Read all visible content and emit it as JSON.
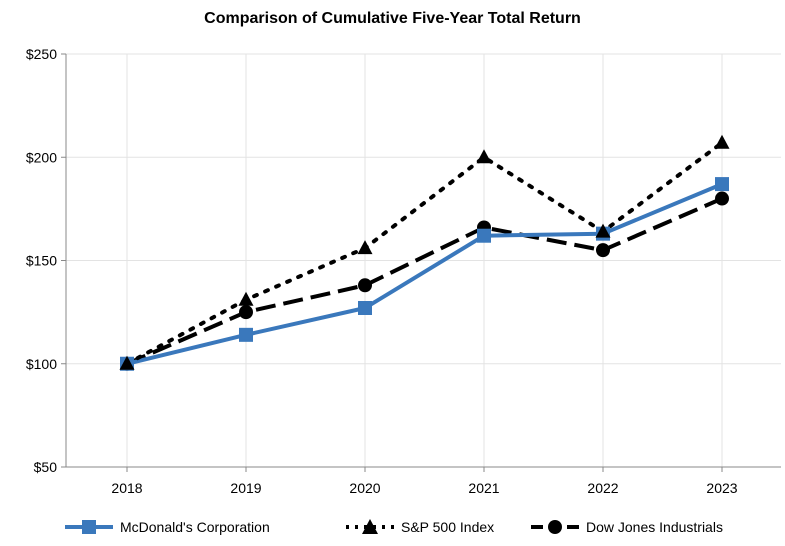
{
  "chart_data": {
    "type": "line",
    "title": "Comparison of Cumulative Five-Year Total Return",
    "xlabel": "",
    "ylabel": "",
    "categories": [
      "2018",
      "2019",
      "2020",
      "2021",
      "2022",
      "2023"
    ],
    "y_ticks": [
      "$50",
      "$100",
      "$150",
      "$200",
      "$250"
    ],
    "ylim": [
      50,
      250
    ],
    "grid": true,
    "legend_position": "bottom",
    "series": [
      {
        "name": "McDonald's Corporation",
        "values": [
          100,
          114,
          127,
          162,
          163,
          187
        ],
        "color": "#3a78bc",
        "line_style": "solid",
        "marker": "square"
      },
      {
        "name": "S&P 500 Index",
        "values": [
          100,
          131,
          156,
          200,
          164,
          207
        ],
        "color": "#000000",
        "line_style": "dotted",
        "marker": "triangle"
      },
      {
        "name": "Dow Jones Industrials",
        "values": [
          100,
          125,
          138,
          166,
          155,
          180
        ],
        "color": "#000000",
        "line_style": "dashed",
        "marker": "circle"
      }
    ]
  }
}
